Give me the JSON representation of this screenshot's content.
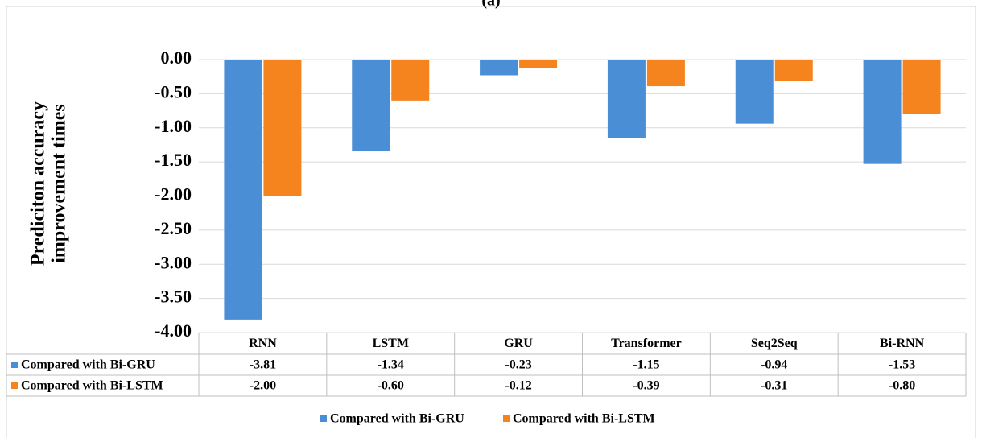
{
  "chart_data": {
    "type": "bar",
    "title": "(a)",
    "y_label": "Prediciton accuracy improvement times",
    "categories": [
      "RNN",
      "LSTM",
      "GRU",
      "Transformer",
      "Seq2Seq",
      "Bi-RNN"
    ],
    "series": [
      {
        "name": "Compared with Bi-GRU",
        "color": "#4a8fd6",
        "values": [
          -3.81,
          -1.34,
          -0.23,
          -1.15,
          -0.94,
          -1.53
        ],
        "value_labels": [
          "-3.81",
          "-1.34",
          "-0.23",
          "-1.15",
          "-0.94",
          "-1.53"
        ]
      },
      {
        "name": "Compared with Bi-LSTM",
        "color": "#f5841f",
        "values": [
          -2.0,
          -0.6,
          -0.12,
          -0.39,
          -0.31,
          -0.8
        ],
        "value_labels": [
          "-2.00",
          "-0.60",
          "-0.12",
          "-0.39",
          "-0.31",
          "-0.80"
        ]
      }
    ],
    "ylim": [
      -4,
      0
    ],
    "yticks": [
      {
        "value": 0,
        "label": "0.00"
      },
      {
        "value": -0.5,
        "label": "-0.50"
      },
      {
        "value": -1,
        "label": "-1.00"
      },
      {
        "value": -1.5,
        "label": "-1.50"
      },
      {
        "value": -2,
        "label": "-2.00"
      },
      {
        "value": -2.5,
        "label": "-2.50"
      },
      {
        "value": -3,
        "label": "-3.00"
      },
      {
        "value": -3.5,
        "label": "-3.50"
      },
      {
        "value": -4,
        "label": "-4.00"
      }
    ],
    "grid": true,
    "legend": "bottom"
  }
}
